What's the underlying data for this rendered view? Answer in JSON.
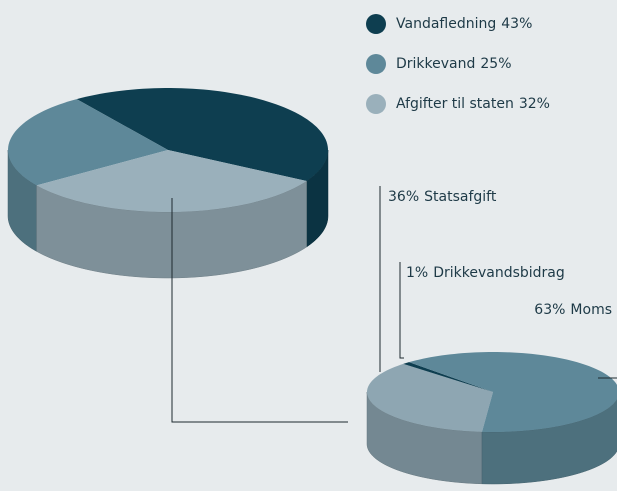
{
  "chart_data": [
    {
      "type": "pie",
      "categories": [
        "Vandafledning",
        "Drikkevand",
        "Afgifter til staten"
      ],
      "values": [
        43,
        25,
        32
      ],
      "value_labels": [
        "43%",
        "25%",
        "32%"
      ],
      "colors": [
        "#0e3e50",
        "#5e8899",
        "#9ab0bb"
      ]
    },
    {
      "type": "pie",
      "categories": [
        "Statsafgift",
        "Drikkevandsbidrag",
        "Moms"
      ],
      "values": [
        36,
        1,
        63
      ],
      "value_labels": [
        "36%",
        "1%",
        "63%"
      ],
      "colors": [
        "#8ea6b2",
        "#0e3e50",
        "#5e8899"
      ]
    }
  ]
}
